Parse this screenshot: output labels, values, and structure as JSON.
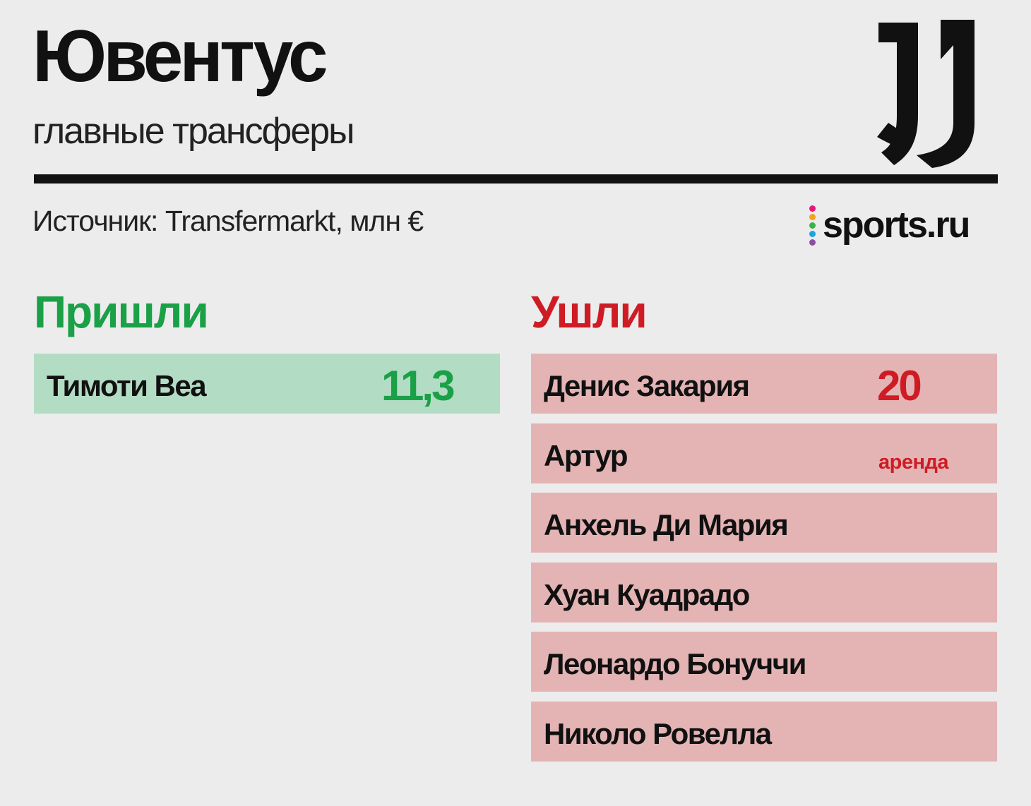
{
  "header": {
    "title": "Ювентус",
    "subtitle": "главные трансферы",
    "logo_icon": "juventus-logo-icon"
  },
  "source_line": "Источник: Transfermarkt, млн €",
  "brand": {
    "name": "sports.ru",
    "dot_colors": [
      "#e6197a",
      "#f3a21b",
      "#37b44a",
      "#1fa3e0",
      "#8c4fa3"
    ]
  },
  "colors": {
    "in_accent": "#1aa047",
    "in_row_bg": "#b3dcc4",
    "out_accent": "#cf1b24",
    "out_row_bg": "#e4b4b5",
    "background": "#ececec"
  },
  "arrived": {
    "heading": "Пришли",
    "items": [
      {
        "name": "Тимоти Веа",
        "fee": "11,3",
        "note": ""
      }
    ]
  },
  "departed": {
    "heading": "Ушли",
    "items": [
      {
        "name": "Денис Закария",
        "fee": "20",
        "note": ""
      },
      {
        "name": "Артур",
        "fee": "",
        "note": "аренда"
      },
      {
        "name": "Анхель Ди Мария",
        "fee": "",
        "note": ""
      },
      {
        "name": "Хуан Куадрадо",
        "fee": "",
        "note": ""
      },
      {
        "name": "Леонардо Бонуччи",
        "fee": "",
        "note": ""
      },
      {
        "name": "Николо Ровелла",
        "fee": "",
        "note": ""
      }
    ]
  }
}
